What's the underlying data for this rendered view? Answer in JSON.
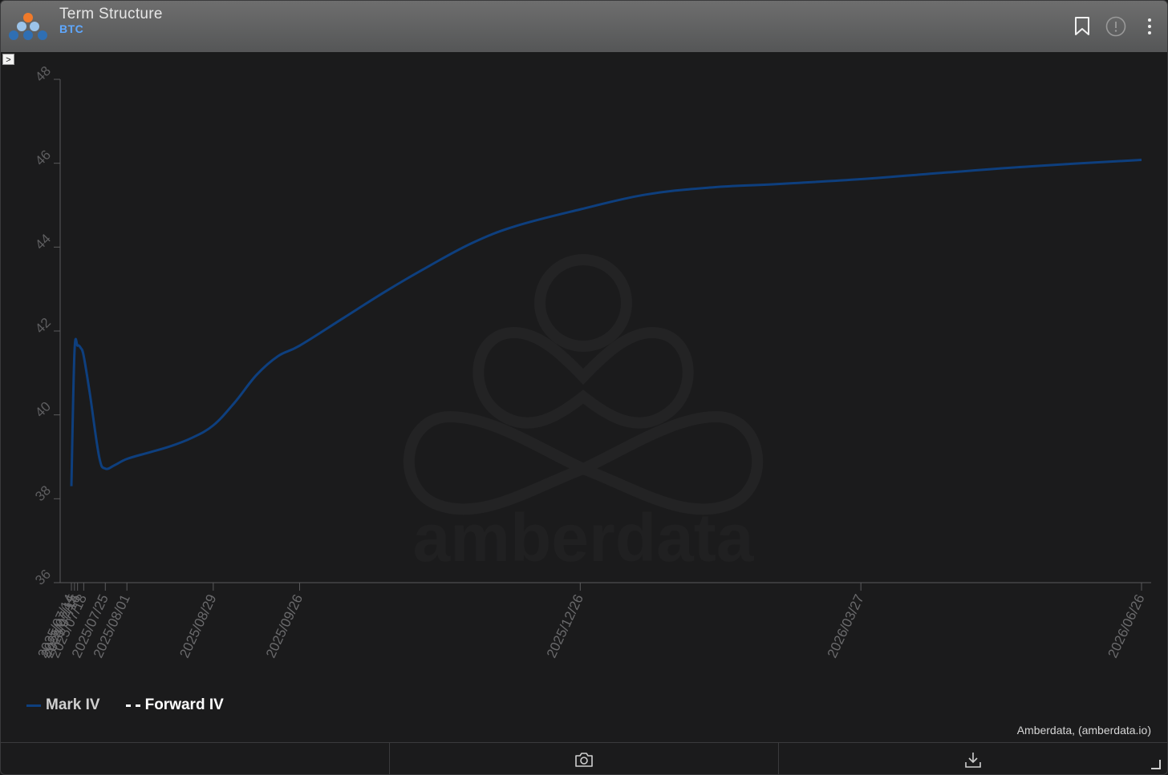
{
  "header": {
    "title": "Term Structure",
    "subtitle": "BTC",
    "icons": [
      "bookmark-icon",
      "info-alert-icon",
      "more-vertical-icon"
    ]
  },
  "colors": {
    "mark_iv": "#0e3f7e",
    "forward_iv": "#ffffff",
    "accent": "#5fa8ff",
    "axis": "#5a5a5c"
  },
  "chart_data": {
    "type": "line",
    "x_type": "date",
    "ylim": [
      36,
      48
    ],
    "yticks": [
      36,
      38,
      40,
      42,
      44,
      46,
      48
    ],
    "xticks": [
      "2025/07/14",
      "2025/07/15",
      "2025/07/16",
      "2025/07/18",
      "2025/07/25",
      "2025/08/01",
      "2025/08/29",
      "2025/09/26",
      "2025/12/26",
      "2026/03/27",
      "2026/06/26"
    ],
    "series": [
      {
        "name": "Mark IV",
        "style": "solid",
        "x": [
          "2025/07/14",
          "2025/07/15",
          "2025/07/16",
          "2025/07/17",
          "2025/07/18",
          "2025/07/20",
          "2025/07/23",
          "2025/07/25",
          "2025/07/28",
          "2025/08/01",
          "2025/08/08",
          "2025/08/15",
          "2025/08/22",
          "2025/08/29",
          "2025/09/05",
          "2025/09/12",
          "2025/09/19",
          "2025/09/26",
          "2025/10/10",
          "2025/10/24",
          "2025/11/07",
          "2025/11/21",
          "2025/12/05",
          "2025/12/26",
          "2026/01/16",
          "2026/02/06",
          "2026/02/27",
          "2026/03/27",
          "2026/04/24",
          "2026/05/22",
          "2026/06/26"
        ],
        "values": [
          38.3,
          41.5,
          41.65,
          41.6,
          41.4,
          40.5,
          39.0,
          38.72,
          38.8,
          38.95,
          39.1,
          39.25,
          39.45,
          39.75,
          40.3,
          40.95,
          41.4,
          41.65,
          42.3,
          42.95,
          43.55,
          44.1,
          44.5,
          44.9,
          45.25,
          45.42,
          45.5,
          45.62,
          45.78,
          45.93,
          46.08
        ]
      },
      {
        "name": "Forward IV",
        "style": "dashed",
        "x": [],
        "values": []
      }
    ]
  },
  "attribution": "Amberdata, (amberdata.io)",
  "watermark": "amberdata",
  "footer": {
    "icons": [
      "camera-icon",
      "download-icon"
    ]
  }
}
